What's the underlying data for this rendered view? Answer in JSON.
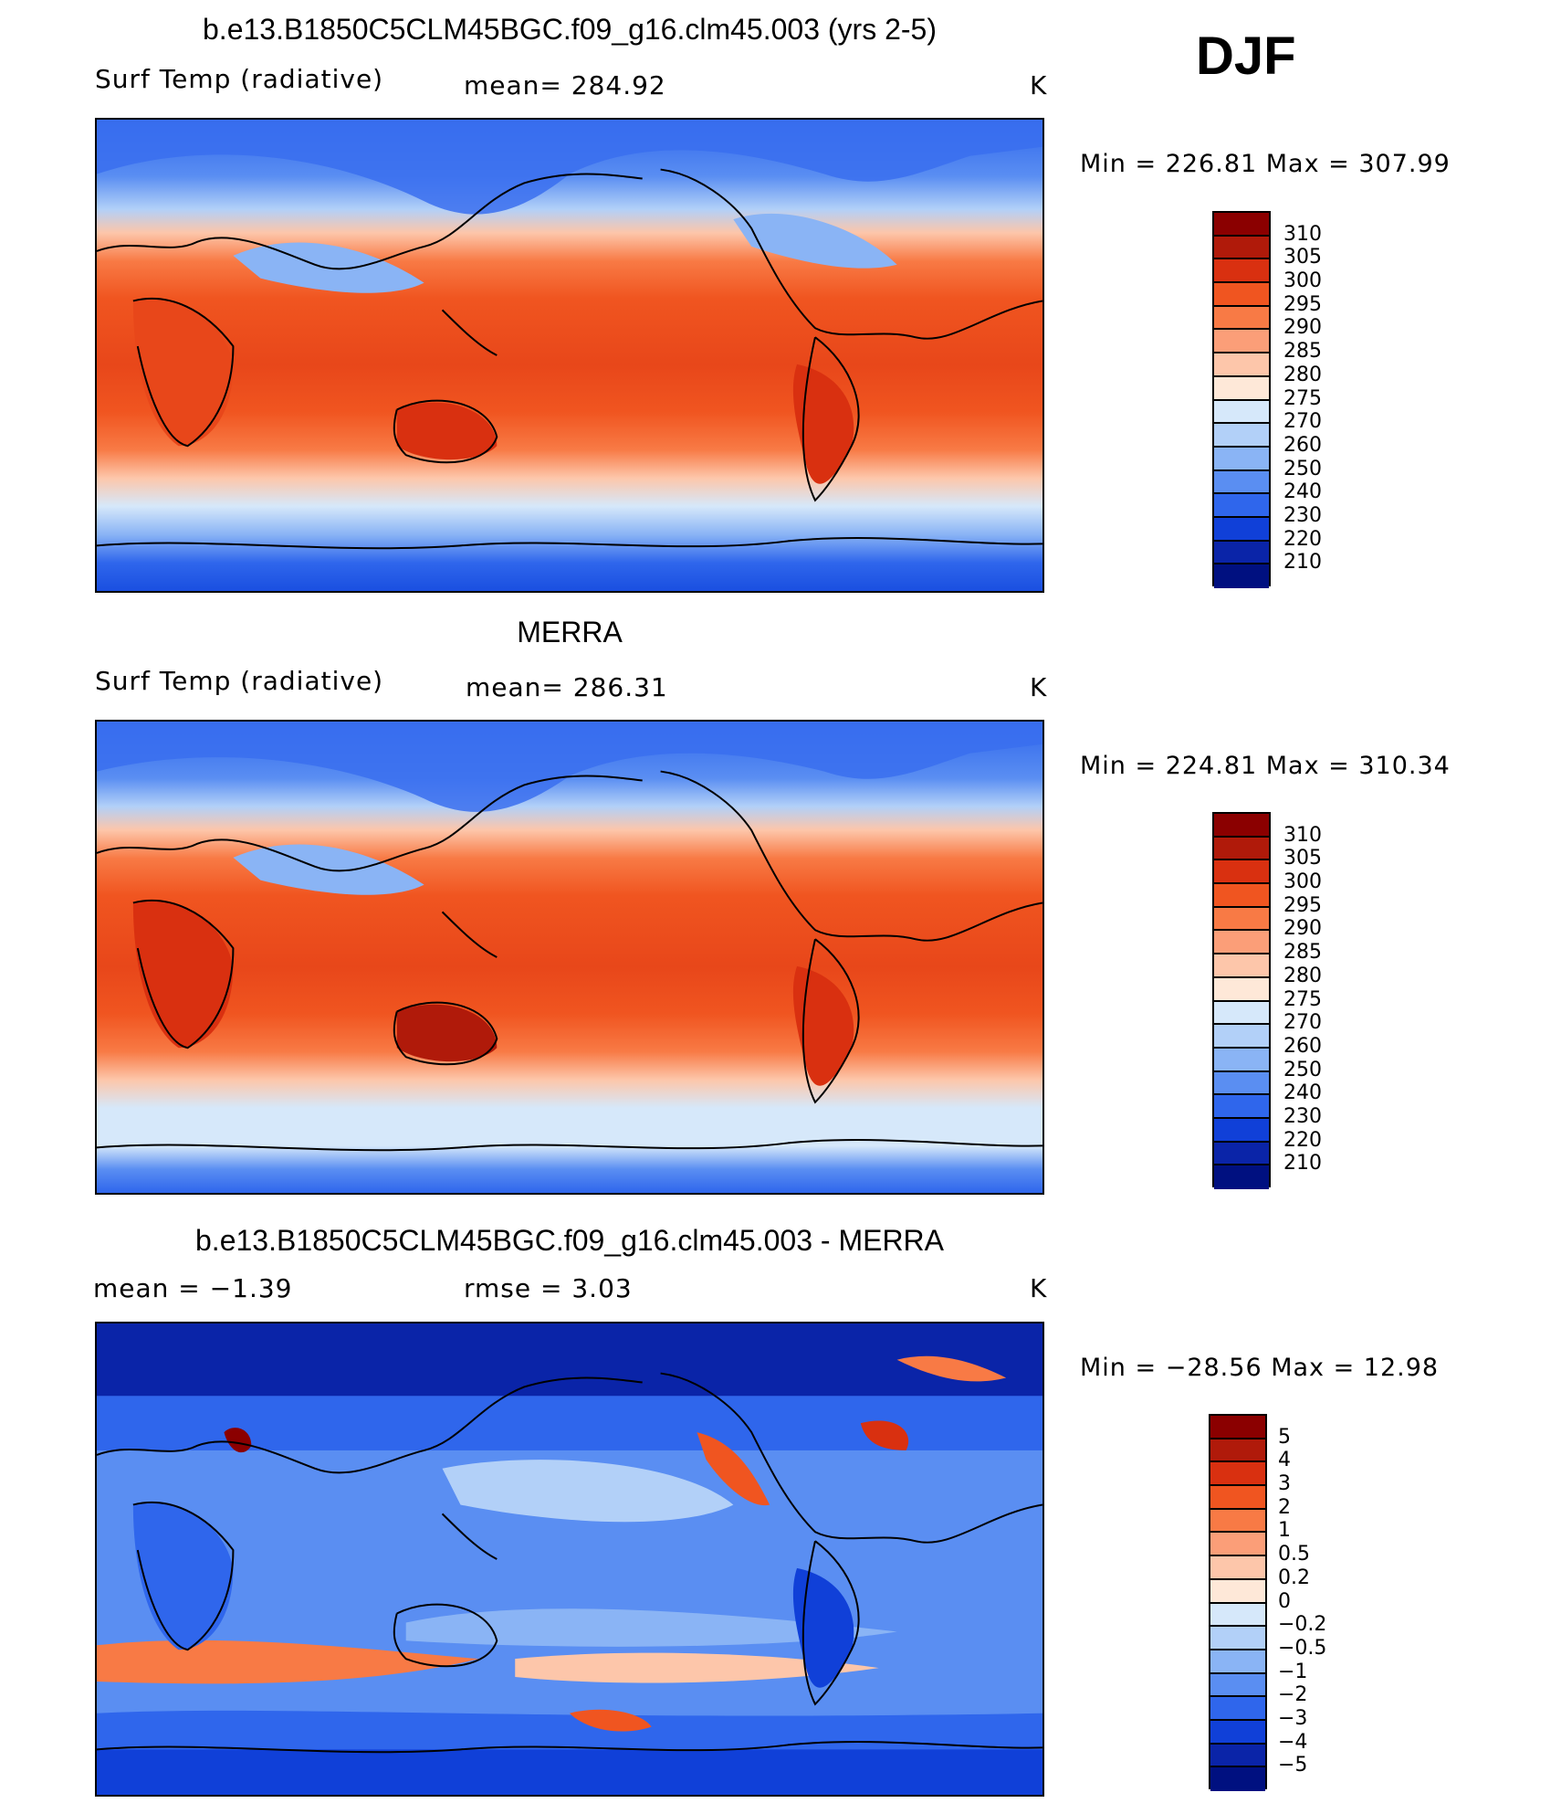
{
  "season": "DJF",
  "panels": [
    {
      "title": "b.e13.B1850C5CLM45BGC.f09_g16.clm45.003 (yrs 2-5)",
      "left": "Surf Temp (radiative)",
      "center": "mean= 284.92",
      "units": "K",
      "minmax": "Min  =  226.81  Max  =  307.99"
    },
    {
      "title": "MERRA",
      "left": "Surf Temp (radiative)",
      "center": "mean= 286.31",
      "units": "K",
      "minmax": "Min  =  224.81  Max  =  310.34"
    },
    {
      "title": "b.e13.B1850C5CLM45BGC.f09_g16.clm45.003 - MERRA",
      "left": "mean  =    −1.39",
      "center": "rmse  =     3.03",
      "units": "K",
      "minmax": "Min  =  −28.56  Max  =    12.98"
    }
  ],
  "colorbars": {
    "absolute": {
      "labels": [
        "310",
        "305",
        "300",
        "295",
        "290",
        "285",
        "280",
        "275",
        "270",
        "260",
        "250",
        "240",
        "230",
        "220",
        "210"
      ],
      "colors": [
        "#8b0000",
        "#b01a0a",
        "#d93010",
        "#f05520",
        "#f87a45",
        "#fb9e78",
        "#fdc6aa",
        "#fee8d8",
        "#d6e8fa",
        "#b2d0f8",
        "#8ab4f5",
        "#5a8ef2",
        "#2f66ec",
        "#1040d8",
        "#0a24a8",
        "#001080"
      ]
    },
    "difference": {
      "labels": [
        "5",
        "4",
        "3",
        "2",
        "1",
        "0.5",
        "0.2",
        "0",
        "−0.2",
        "−0.5",
        "−1",
        "−2",
        "−3",
        "−4",
        "−5"
      ],
      "colors": [
        "#8b0000",
        "#b01a0a",
        "#d93010",
        "#f05520",
        "#f87a45",
        "#fb9e78",
        "#fdc6aa",
        "#fee8d8",
        "#d6e8fa",
        "#b2d0f8",
        "#8ab4f5",
        "#5a8ef2",
        "#2f66ec",
        "#1040d8",
        "#0a24a8",
        "#001080"
      ]
    }
  }
}
